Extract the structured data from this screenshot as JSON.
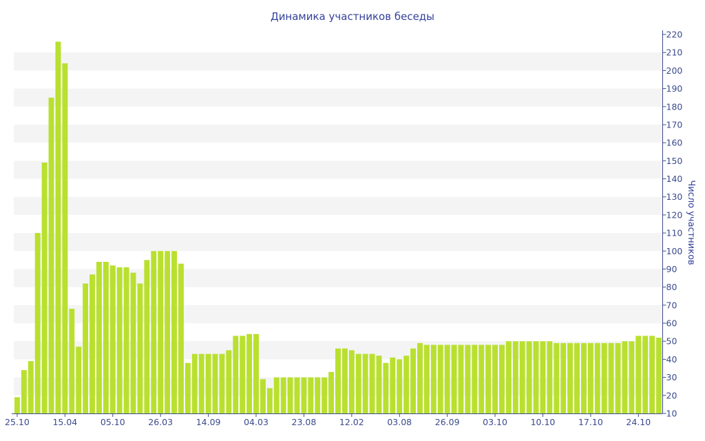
{
  "chart_data": {
    "type": "bar",
    "title": "Динамика участников беседы",
    "ylabel": "Число участников",
    "xlabel": "",
    "ylim": [
      10,
      220
    ],
    "y_ticks": [
      10,
      20,
      30,
      40,
      50,
      60,
      70,
      80,
      90,
      100,
      110,
      120,
      130,
      140,
      150,
      160,
      170,
      180,
      190,
      200,
      210,
      220
    ],
    "x_tick_labels": [
      {
        "index": 0,
        "label": "25.10"
      },
      {
        "index": 7,
        "label": "15.04"
      },
      {
        "index": 14,
        "label": "05.10"
      },
      {
        "index": 21,
        "label": "26.03"
      },
      {
        "index": 28,
        "label": "14.09"
      },
      {
        "index": 35,
        "label": "04.03"
      },
      {
        "index": 42,
        "label": "23.08"
      },
      {
        "index": 49,
        "label": "12.02"
      },
      {
        "index": 56,
        "label": "03.08"
      },
      {
        "index": 63,
        "label": "26.09"
      },
      {
        "index": 70,
        "label": "03.10"
      },
      {
        "index": 77,
        "label": "10.10"
      },
      {
        "index": 84,
        "label": "17.10"
      },
      {
        "index": 91,
        "label": "24.10"
      }
    ],
    "values": [
      19,
      34,
      39,
      110,
      149,
      185,
      216,
      204,
      68,
      47,
      82,
      87,
      94,
      94,
      92,
      91,
      91,
      88,
      82,
      95,
      100,
      100,
      100,
      100,
      93,
      38,
      43,
      43,
      43,
      43,
      43,
      45,
      53,
      53,
      54,
      54,
      29,
      24,
      30,
      30,
      30,
      30,
      30,
      30,
      30,
      30,
      33,
      46,
      46,
      45,
      43,
      43,
      43,
      42,
      38,
      41,
      40,
      42,
      46,
      49,
      48,
      48,
      48,
      48,
      48,
      48,
      48,
      48,
      48,
      48,
      48,
      48,
      50,
      50,
      50,
      50,
      50,
      50,
      50,
      49,
      49,
      49,
      49,
      49,
      49,
      49,
      49,
      49,
      49,
      50,
      50,
      53,
      53,
      53,
      52
    ],
    "colors": {
      "bar": "#b9e02f",
      "band": "#f4f4f4",
      "axis": "#3a4a8c",
      "text": "#33419a"
    },
    "grid": "alternating horizontal bands",
    "y_axis_position": "right"
  }
}
